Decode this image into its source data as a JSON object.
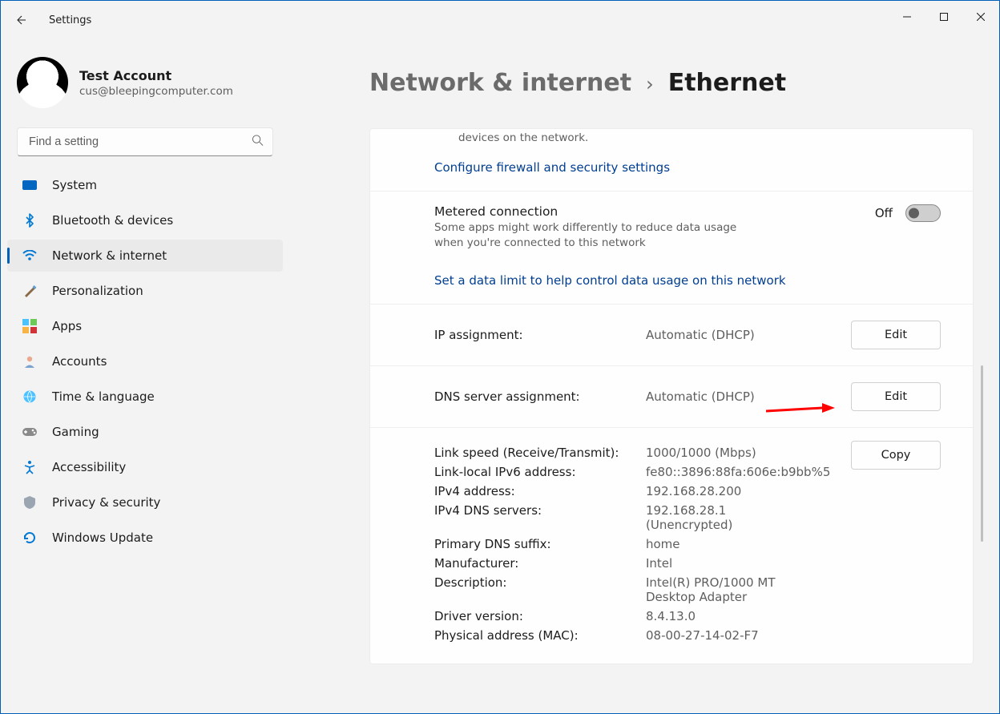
{
  "window": {
    "app_title": "Settings"
  },
  "profile": {
    "name": "Test Account",
    "email": "cus@bleepingcomputer.com"
  },
  "search": {
    "placeholder": "Find a setting"
  },
  "sidebar": {
    "items": [
      {
        "label": "System"
      },
      {
        "label": "Bluetooth & devices"
      },
      {
        "label": "Network & internet"
      },
      {
        "label": "Personalization"
      },
      {
        "label": "Apps"
      },
      {
        "label": "Accounts"
      },
      {
        "label": "Time & language"
      },
      {
        "label": "Gaming"
      },
      {
        "label": "Accessibility"
      },
      {
        "label": "Privacy & security"
      },
      {
        "label": "Windows Update"
      }
    ],
    "active_index": 2
  },
  "breadcrumb": {
    "parent": "Network & internet",
    "current": "Ethernet"
  },
  "content": {
    "truncated_top": "devices on the network.",
    "firewall_link": "Configure firewall and security settings",
    "metered": {
      "title": "Metered connection",
      "subtitle": "Some apps might work differently to reduce data usage when you're connected to this network",
      "state_label": "Off"
    },
    "data_limit_link": "Set a data limit to help control data usage on this network",
    "ip_assignment": {
      "label": "IP assignment:",
      "value": "Automatic (DHCP)",
      "button": "Edit"
    },
    "dns_assignment": {
      "label": "DNS server assignment:",
      "value": "Automatic (DHCP)",
      "button": "Edit"
    },
    "details": {
      "button": "Copy",
      "rows": [
        {
          "k": "Link speed (Receive/Transmit):",
          "v": "1000/1000 (Mbps)"
        },
        {
          "k": "Link-local IPv6 address:",
          "v": "fe80::3896:88fa:606e:b9bb%5"
        },
        {
          "k": "IPv4 address:",
          "v": "192.168.28.200"
        },
        {
          "k": "IPv4 DNS servers:",
          "v": "192.168.28.1 (Unencrypted)"
        },
        {
          "k": "Primary DNS suffix:",
          "v": "home"
        },
        {
          "k": "Manufacturer:",
          "v": "Intel"
        },
        {
          "k": "Description:",
          "v": "Intel(R) PRO/1000 MT Desktop Adapter"
        },
        {
          "k": "Driver version:",
          "v": "8.4.13.0"
        },
        {
          "k": "Physical address (MAC):",
          "v": "08-00-27-14-02-F7"
        }
      ]
    }
  },
  "colors": {
    "accent": "#005fb8",
    "link": "#003e92",
    "muted": "#5e5e5e",
    "bg": "#f3f3f3",
    "card": "#fefefe"
  },
  "annotation": {
    "arrow_color": "#ff0000"
  }
}
